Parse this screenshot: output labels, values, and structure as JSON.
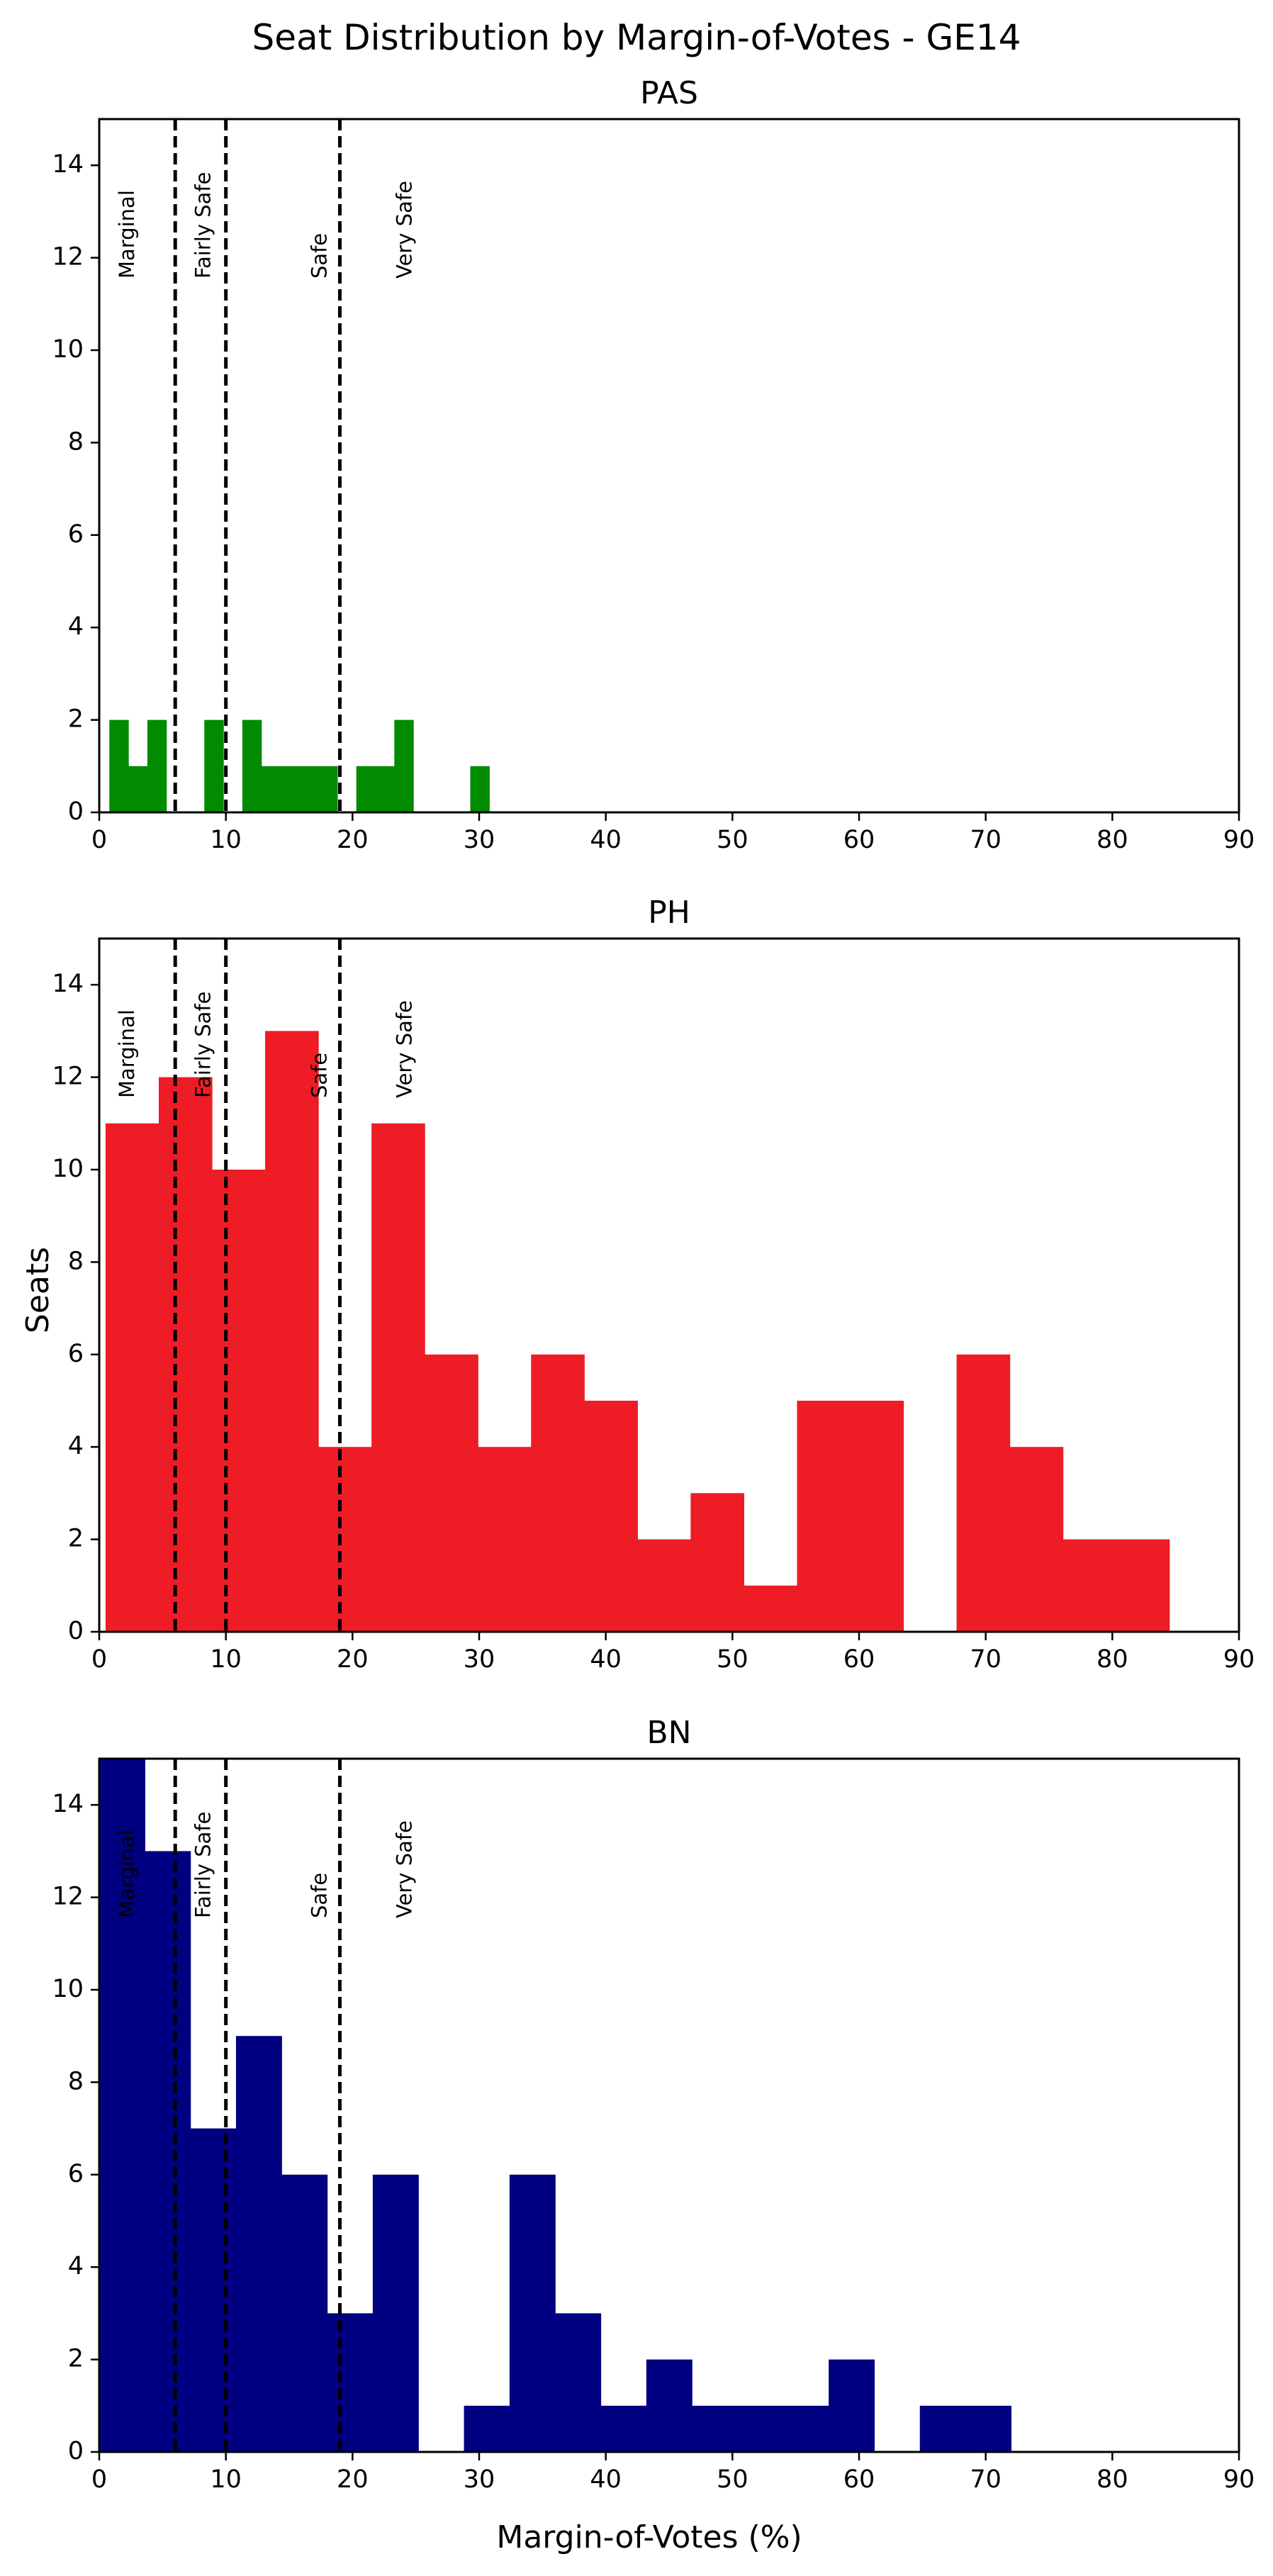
{
  "title": "Seat Distribution by Margin-of-Votes - GE14",
  "ylabel": "Seats",
  "xlabel": "Margin-of-Votes (%)",
  "threshold_lines": [
    6,
    10,
    19
  ],
  "category_labels": [
    {
      "text": "Marginal",
      "x": 2.3
    },
    {
      "text": "Fairly Safe",
      "x": 8.3
    },
    {
      "text": "Safe",
      "x": 17.5
    },
    {
      "text": "Very Safe",
      "x": 24.2
    }
  ],
  "chart_data": [
    {
      "type": "bar",
      "title": "PAS",
      "color": "#008b00",
      "xlim": [
        0,
        90
      ],
      "ylim": [
        0,
        15
      ],
      "xticks": [
        0,
        10,
        20,
        30,
        40,
        50,
        60,
        70,
        80,
        90
      ],
      "yticks": [
        0,
        2,
        4,
        6,
        8,
        10,
        12,
        14
      ],
      "bins": [
        {
          "x0": 0.8,
          "x1": 2.3,
          "y": 2
        },
        {
          "x0": 2.3,
          "x1": 3.8,
          "y": 1
        },
        {
          "x0": 3.8,
          "x1": 5.3,
          "y": 2
        },
        {
          "x0": 8.3,
          "x1": 9.8,
          "y": 2
        },
        {
          "x0": 11.3,
          "x1": 12.8,
          "y": 2
        },
        {
          "x0": 12.8,
          "x1": 14.3,
          "y": 1
        },
        {
          "x0": 14.3,
          "x1": 15.8,
          "y": 1
        },
        {
          "x0": 15.8,
          "x1": 17.3,
          "y": 1
        },
        {
          "x0": 17.3,
          "x1": 18.8,
          "y": 1
        },
        {
          "x0": 20.3,
          "x1": 21.8,
          "y": 1
        },
        {
          "x0": 21.8,
          "x1": 23.3,
          "y": 1
        },
        {
          "x0": 23.3,
          "x1": 24.8,
          "y": 2
        },
        {
          "x0": 29.3,
          "x1": 30.8,
          "y": 1
        }
      ]
    },
    {
      "type": "bar",
      "title": "PH",
      "color": "#ee1c25",
      "xlim": [
        0,
        90
      ],
      "ylim": [
        0,
        15
      ],
      "xticks": [
        0,
        10,
        20,
        30,
        40,
        50,
        60,
        70,
        80,
        90
      ],
      "yticks": [
        0,
        2,
        4,
        6,
        8,
        10,
        12,
        14
      ],
      "bins": [
        {
          "x0": 0.5,
          "x1": 4.7,
          "y": 11
        },
        {
          "x0": 4.7,
          "x1": 8.9,
          "y": 12
        },
        {
          "x0": 8.9,
          "x1": 13.1,
          "y": 10
        },
        {
          "x0": 13.1,
          "x1": 17.3,
          "y": 13
        },
        {
          "x0": 17.3,
          "x1": 21.5,
          "y": 4
        },
        {
          "x0": 21.5,
          "x1": 25.7,
          "y": 11
        },
        {
          "x0": 25.7,
          "x1": 29.9,
          "y": 6
        },
        {
          "x0": 29.9,
          "x1": 34.1,
          "y": 4
        },
        {
          "x0": 34.1,
          "x1": 38.3,
          "y": 6
        },
        {
          "x0": 38.3,
          "x1": 42.5,
          "y": 5
        },
        {
          "x0": 42.5,
          "x1": 46.7,
          "y": 2
        },
        {
          "x0": 46.7,
          "x1": 50.9,
          "y": 3
        },
        {
          "x0": 50.9,
          "x1": 55.1,
          "y": 1
        },
        {
          "x0": 55.1,
          "x1": 59.3,
          "y": 5
        },
        {
          "x0": 59.3,
          "x1": 63.5,
          "y": 5
        },
        {
          "x0": 67.7,
          "x1": 71.9,
          "y": 6
        },
        {
          "x0": 71.9,
          "x1": 76.1,
          "y": 4
        },
        {
          "x0": 76.1,
          "x1": 80.3,
          "y": 2
        },
        {
          "x0": 80.3,
          "x1": 84.5,
          "y": 2
        }
      ]
    },
    {
      "type": "bar",
      "title": "BN",
      "color": "#000080",
      "xlim": [
        0,
        90
      ],
      "ylim": [
        0,
        15
      ],
      "xticks": [
        0,
        10,
        20,
        30,
        40,
        50,
        60,
        70,
        80,
        90
      ],
      "yticks": [
        0,
        2,
        4,
        6,
        8,
        10,
        12,
        14
      ],
      "bins": [
        {
          "x0": 0.0,
          "x1": 3.6,
          "y": 15
        },
        {
          "x0": 3.6,
          "x1": 7.2,
          "y": 13
        },
        {
          "x0": 7.2,
          "x1": 10.8,
          "y": 7
        },
        {
          "x0": 10.8,
          "x1": 14.4,
          "y": 9
        },
        {
          "x0": 14.4,
          "x1": 18.0,
          "y": 6
        },
        {
          "x0": 18.0,
          "x1": 21.6,
          "y": 3
        },
        {
          "x0": 21.6,
          "x1": 25.2,
          "y": 6
        },
        {
          "x0": 28.8,
          "x1": 32.4,
          "y": 1
        },
        {
          "x0": 32.4,
          "x1": 36.0,
          "y": 6
        },
        {
          "x0": 36.0,
          "x1": 39.6,
          "y": 3
        },
        {
          "x0": 39.6,
          "x1": 43.2,
          "y": 1
        },
        {
          "x0": 43.2,
          "x1": 46.8,
          "y": 2
        },
        {
          "x0": 46.8,
          "x1": 50.4,
          "y": 1
        },
        {
          "x0": 50.4,
          "x1": 54.0,
          "y": 1
        },
        {
          "x0": 54.0,
          "x1": 57.6,
          "y": 1
        },
        {
          "x0": 57.6,
          "x1": 61.2,
          "y": 2
        },
        {
          "x0": 64.8,
          "x1": 68.4,
          "y": 1
        },
        {
          "x0": 68.4,
          "x1": 72.0,
          "y": 1
        }
      ]
    }
  ]
}
